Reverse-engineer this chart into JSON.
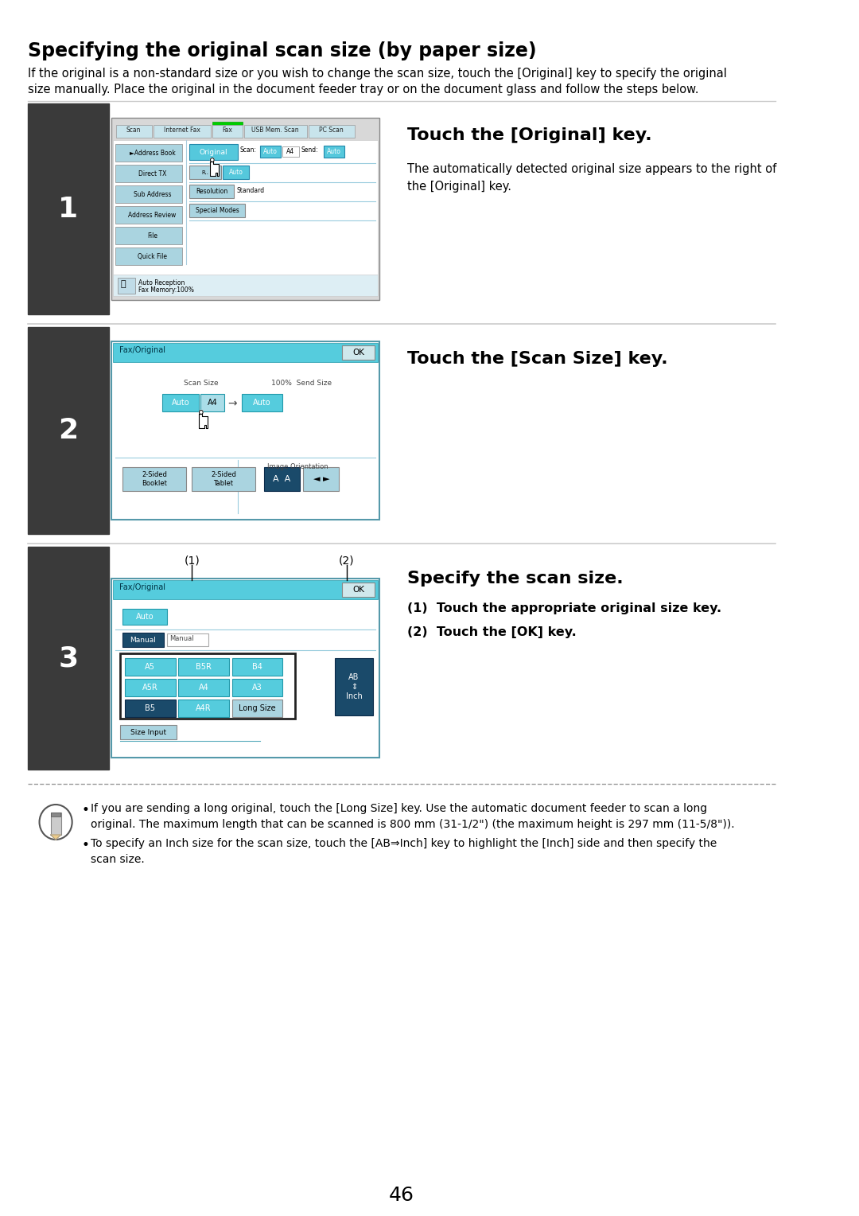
{
  "title": "Specifying the original scan size (by paper size)",
  "intro_text": "If the original is a non-standard size or you wish to change the scan size, touch the [Original] key to specify the original\nsize manually. Place the original in the document feeder tray or on the document glass and follow the steps below.",
  "bg_color": "#ffffff",
  "dark_bg": "#3a3a3a",
  "step1_heading": "Touch the [Original] key.",
  "step1_body": "The automatically detected original size appears to the right of\nthe [Original] key.",
  "step2_heading": "Touch the [Scan Size] key.",
  "step3_heading": "Specify the scan size.",
  "step3_sub1": "(1)  Touch the appropriate original size key.",
  "step3_sub2": "(2)  Touch the [OK] key.",
  "note1": "If you are sending a long original, touch the [Long Size] key. Use the automatic document feeder to scan a long\noriginal. The maximum length that can be scanned is 800 mm (31-1/2\") (the maximum height is 297 mm (11-5/8\")).",
  "note2": "To specify an Inch size for the scan size, touch the [AB⇒Inch] key to highlight the [Inch] side and then specify the\nscan size.",
  "page_number": "46",
  "cyan_btn": "#5dd8e8",
  "cyan_dark_btn": "#1a6080",
  "gray_btn": "#b8d8e0",
  "screen_border": "#5599aa"
}
